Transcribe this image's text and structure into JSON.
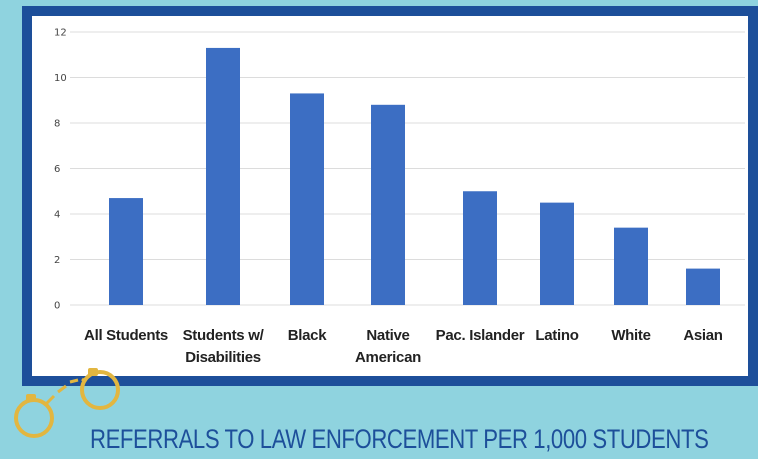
{
  "colors": {
    "background": "#8fd3df",
    "frame": "#1d4f9a",
    "bar": "#3c6ec3",
    "title": "#1d4f9a",
    "handcuffs": "#e2b640"
  },
  "decoration": {
    "icon": "handcuffs-icon"
  },
  "chart_data": {
    "type": "bar",
    "title": "REFERRALS TO LAW ENFORCEMENT PER 1,000 STUDENTS",
    "categories": [
      [
        "All Students"
      ],
      [
        "Students w/",
        "Disabilities"
      ],
      [
        "Black"
      ],
      [
        "Native",
        "American"
      ],
      [
        "Pac. Islander"
      ],
      [
        "Latino"
      ],
      [
        "White"
      ],
      [
        "Asian"
      ]
    ],
    "values": [
      4.7,
      11.3,
      9.3,
      8.8,
      5.0,
      4.5,
      3.4,
      1.6
    ],
    "yticks": [
      "0",
      "2",
      "4",
      "6",
      "8",
      "10",
      "12"
    ],
    "ylim": [
      0,
      12
    ],
    "grid": true,
    "xlabel": "",
    "ylabel": ""
  }
}
